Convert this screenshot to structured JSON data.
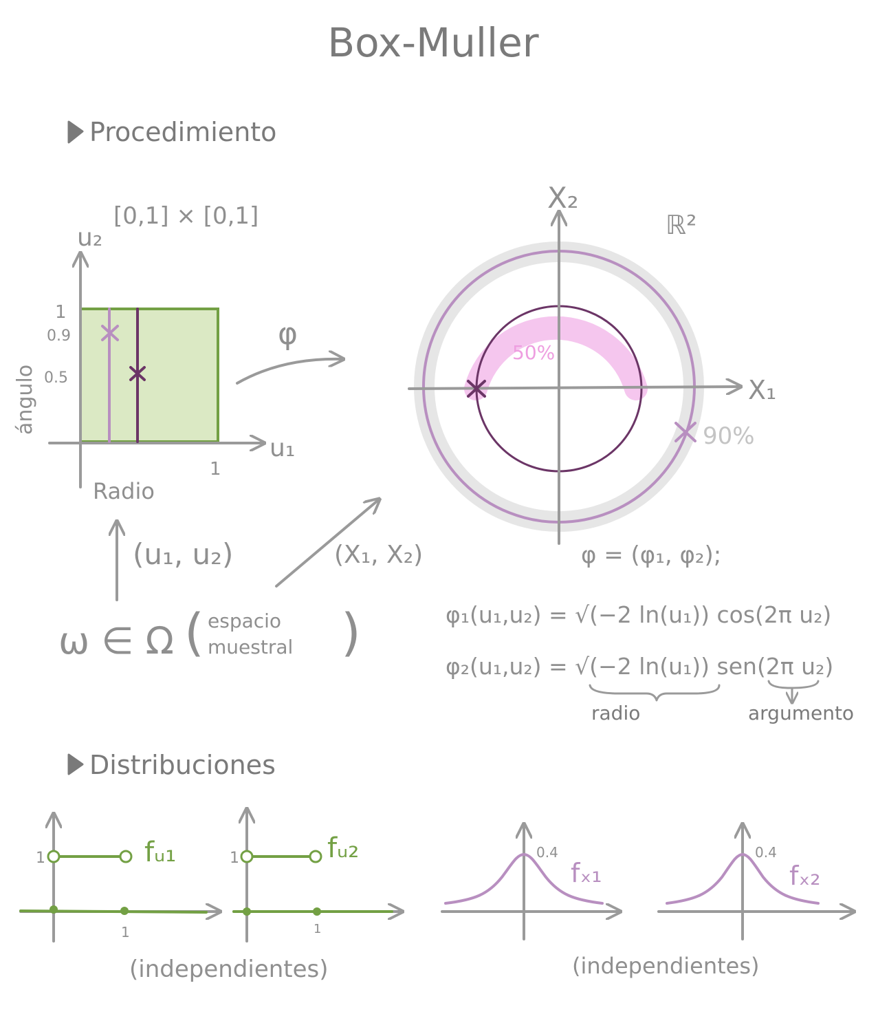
{
  "title": "Box-Muller",
  "sections": {
    "procedure": "Procedimiento",
    "distributions": "Distribuciones"
  },
  "colors": {
    "ink": "#9a9a9a",
    "green": "#73a044",
    "green_fill": "#dbe9c4",
    "purple_light": "#b88fc0",
    "purple_dark": "#6b3566",
    "pink": "#f5c6ee",
    "gray_band": "#e6e6e6"
  },
  "square_plot": {
    "domain_label": "[0,1] × [0,1]",
    "x_axis": "u₁",
    "y_axis": "u₂",
    "x_tick": "1",
    "y_ticks": [
      "1",
      "0.9",
      "0.5"
    ],
    "x_caption": "Radio",
    "y_caption": "ángulo"
  },
  "map_label": "φ",
  "plane_plot": {
    "space_label": "ℝ²",
    "x_axis": "X₁",
    "y_axis": "X₂",
    "inner_percent": "50%",
    "outer_percent": "90%"
  },
  "omega": {
    "symbol": "ω ∈ Ω",
    "note_line1": "espacio",
    "note_line2": "muestral",
    "u_pair": "(u₁, u₂)",
    "x_pair": "(X₁, X₂)"
  },
  "formulas": {
    "phi_def": "φ = (φ₁, φ₂);",
    "phi1": "φ₁(u₁,u₂) = √(−2 ln(u₁)) cos(2π u₂)",
    "phi2": "φ₂(u₁,u₂) = √(−2 ln(u₁)) sen(2π u₂)",
    "radius_label": "radio",
    "argument_label": "argumento"
  },
  "dist_plots": {
    "f_u1": "fᵤ₁",
    "f_u2": "fᵤ₂",
    "f_x1": "fₓ₁",
    "f_x2": "fₓ₂",
    "uniform_height": "1",
    "uniform_width": "1",
    "normal_peak": "0.4",
    "note_left": "(independientes)",
    "note_right": "(independientes)"
  }
}
